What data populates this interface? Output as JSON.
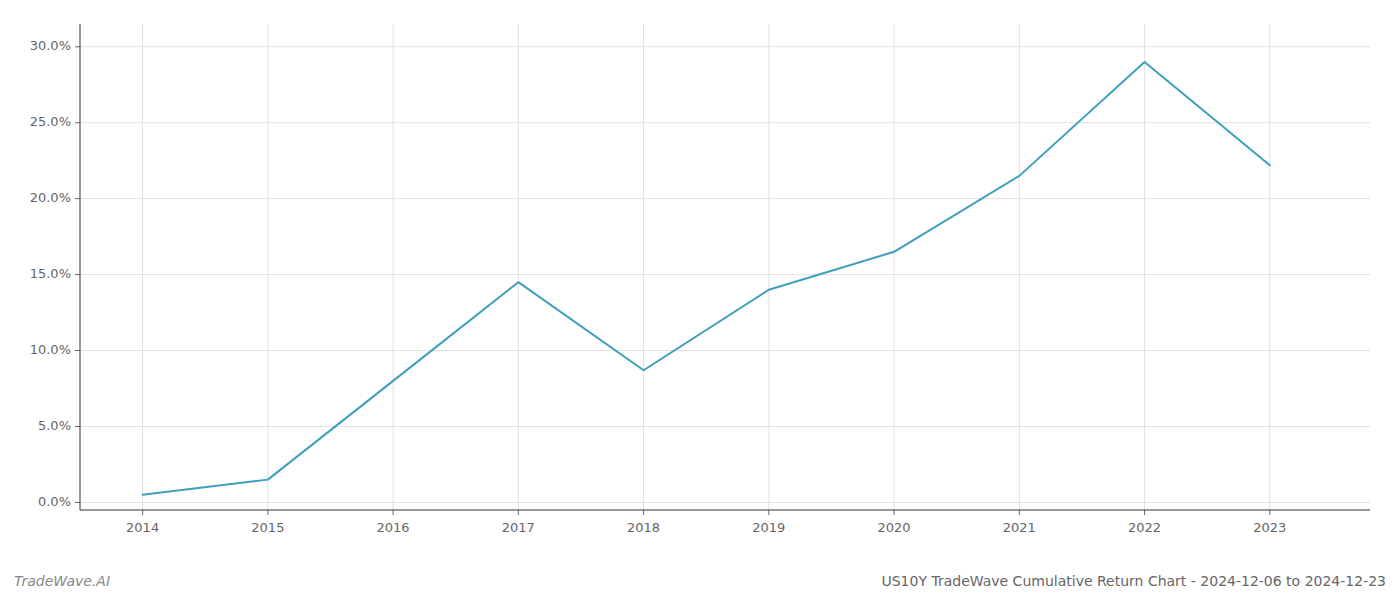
{
  "chart_data": {
    "type": "line",
    "title": "US10Y TradeWave Cumulative Return Chart - 2024-12-06 to 2024-12-23",
    "annotations": [
      "TradeWave.AI"
    ],
    "x": [
      2014,
      2015,
      2016,
      2017,
      2018,
      2019,
      2020,
      2021,
      2022,
      2023
    ],
    "values": [
      0.005,
      0.015,
      0.08,
      0.145,
      0.087,
      0.14,
      0.165,
      0.215,
      0.29,
      0.222
    ],
    "color": "#3d9fbd",
    "xlim": [
      2013.5,
      2023.8
    ],
    "xticks": [
      2014,
      2015,
      2016,
      2017,
      2018,
      2019,
      2020,
      2021,
      2022,
      2023
    ],
    "ylim": [
      -0.005,
      0.315
    ],
    "yticks": [
      {
        "value": 0.0,
        "label": "0.0%"
      },
      {
        "value": 0.05,
        "label": "5.0%"
      },
      {
        "value": 0.1,
        "label": "10.0%"
      },
      {
        "value": 0.15,
        "label": "15.0%"
      },
      {
        "value": 0.2,
        "label": "20.0%"
      },
      {
        "value": 0.25,
        "label": "25.0%"
      },
      {
        "value": 0.3,
        "label": "30.0%"
      }
    ],
    "grid": true
  }
}
